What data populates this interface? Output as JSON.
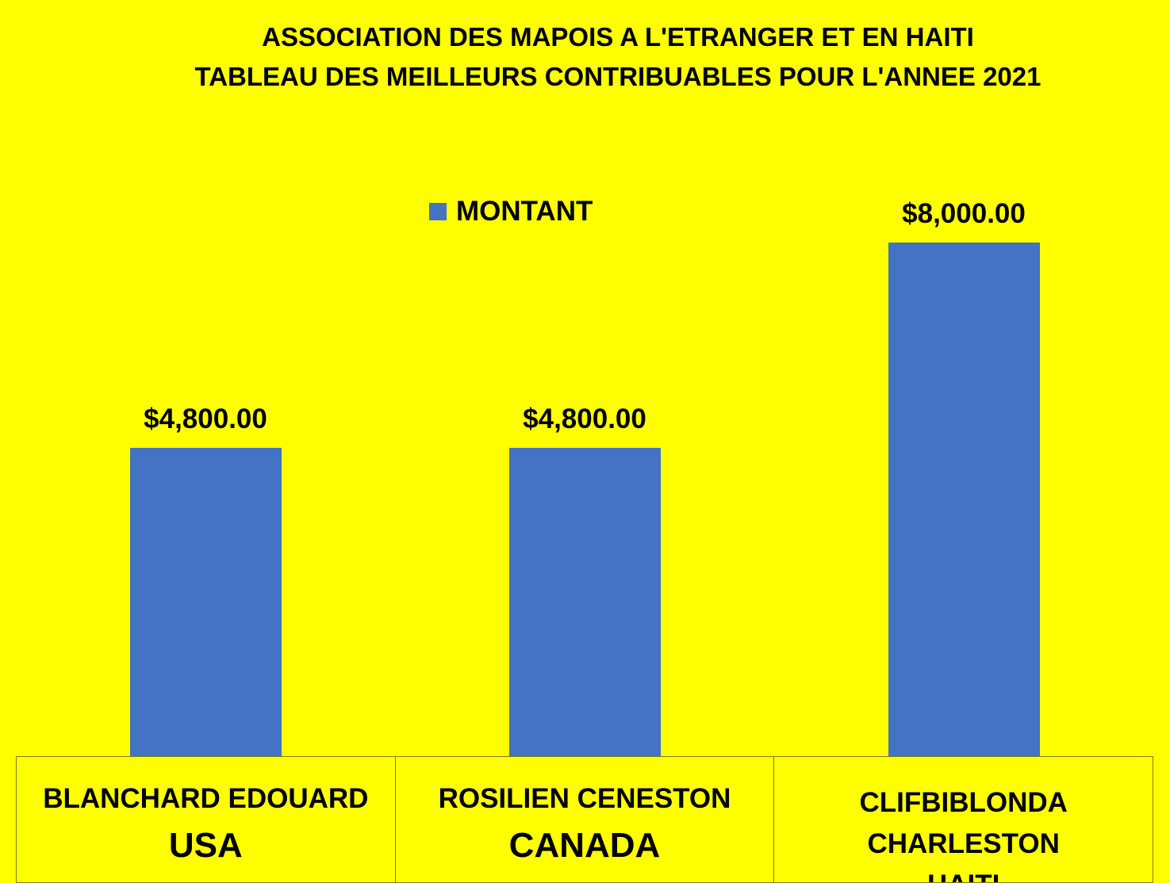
{
  "chart_data": {
    "type": "bar",
    "title_lines": [
      "ASSOCIATION DES MAPOIS A L'ETRANGER ET EN HAITI",
      "TABLEAU DES MEILLEURS CONTRIBUABLES POUR L'ANNEE 2021"
    ],
    "legend": {
      "label": "MONTANT",
      "position": "top-center"
    },
    "categories": [
      {
        "name": "BLANCHARD EDOUARD",
        "country": "USA",
        "lines": []
      },
      {
        "name": "ROSILIEN CENESTON",
        "country": "CANADA",
        "lines": []
      },
      {
        "name": "",
        "country": "",
        "lines": [
          "CLIFBIBLONDA",
          "CHARLESTON",
          "HAITI"
        ]
      }
    ],
    "series": [
      {
        "name": "MONTANT",
        "color": "#4472C4",
        "values": [
          4800,
          4800,
          8000
        ]
      }
    ],
    "data_labels": [
      "$4,800.00",
      "$4,800.00",
      "$8,000.00"
    ],
    "ylim": [
      0,
      9800
    ],
    "grid": false
  }
}
